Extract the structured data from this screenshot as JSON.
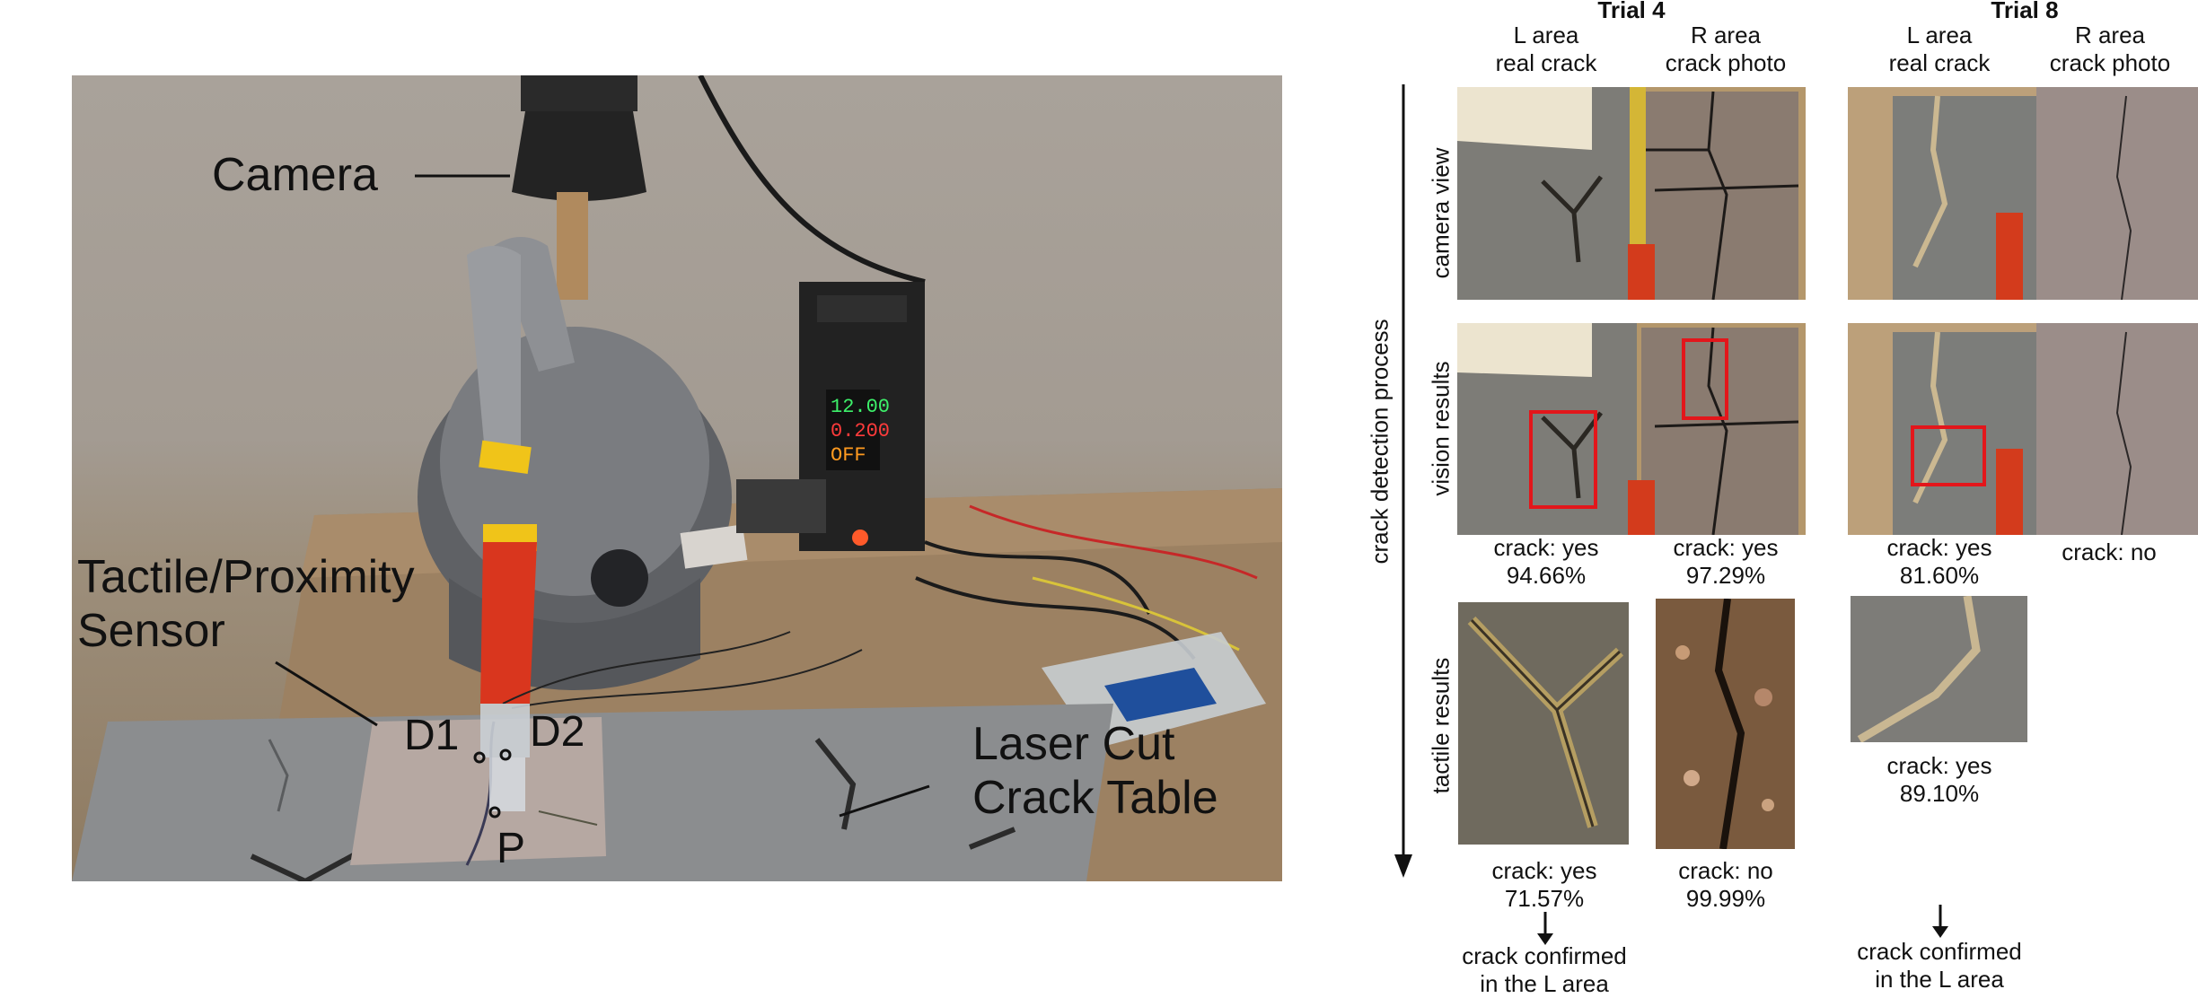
{
  "photo": {
    "labels": {
      "camera": "Camera",
      "sensor": "Tactile/Proximity\nSensor",
      "d1": "D1",
      "d2": "D2",
      "p": "P",
      "table": "Laser Cut\nCrack Table"
    }
  },
  "results": {
    "axis_label": "crack detection process",
    "row_labels": [
      "camera view",
      "vision results",
      "tactile results"
    ],
    "trials": [
      {
        "title": "Trial 4",
        "col_l": "L area\nreal crack",
        "col_r": "R area\ncrack photo",
        "vision_l": "crack: yes\n94.66%",
        "vision_r": "crack: yes\n97.29%",
        "tactile_l": "crack: yes\n71.57%",
        "tactile_r": "crack: no\n99.99%",
        "conclusion": "crack confirmed\nin the L area"
      },
      {
        "title": "Trial 8",
        "col_l": "L area\nreal crack",
        "col_r": "R area\ncrack photo",
        "vision_l": "crack: yes\n81.60%",
        "vision_r": "crack: no",
        "tactile_l": "crack: yes\n89.10%",
        "conclusion": "crack confirmed\nin the L area"
      }
    ]
  },
  "colors": {
    "highlight_box": "#e3161b",
    "sensor_red": "#d9361e",
    "tape_yellow": "#f0c419"
  }
}
